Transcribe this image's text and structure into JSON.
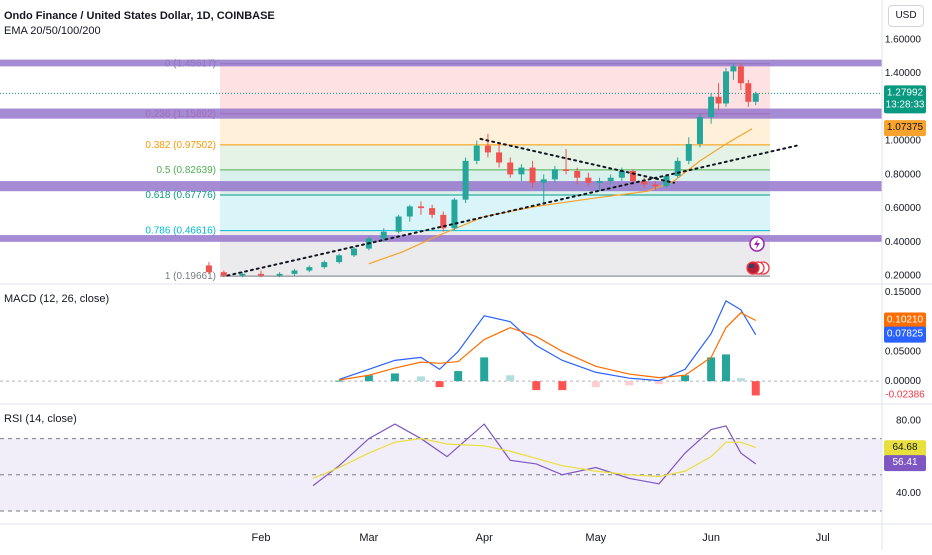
{
  "header": {
    "title": "Ondo Finance / United States Dollar, 1D, COINBASE",
    "indicator": "EMA 20/50/100/200",
    "currency_button": "USD"
  },
  "colors": {
    "up": "#26a69a",
    "down": "#ef5350",
    "ema": "#f7a32c",
    "macd": "#2962ff",
    "signal": "#ff6d00",
    "rsi": "#7e57c2",
    "rsi_ma": "#e8df3c",
    "zone": "#9575cd"
  },
  "chart_data": [
    {
      "type": "candlestick",
      "title": "Ondo Finance / United States Dollar, 1D, COINBASE",
      "xlabel": "",
      "ylabel": "",
      "ylim": [
        0.15,
        1.62
      ],
      "yticks": [
        "1.60000",
        "1.40000",
        "1.20000",
        "1.00000",
        "0.80000",
        "0.60000",
        "0.40000",
        "0.20000"
      ],
      "x_ticks": [
        "Feb",
        "Mar",
        "Apr",
        "May",
        "Jun",
        "Jul"
      ],
      "price_labels": {
        "last": "1.27992",
        "countdown": "13:28:33",
        "ema": "1.07375"
      },
      "fib_levels": [
        {
          "label": "0 (1.45617)",
          "value": 1.45617,
          "color": "#787b86"
        },
        {
          "label": "0.236 (1.15892)",
          "value": 1.15892,
          "color": "#f23645"
        },
        {
          "label": "0.382 (0.97502)",
          "value": 0.97502,
          "color": "#ff9800"
        },
        {
          "label": "0.5 (0.82639)",
          "value": 0.82639,
          "color": "#4caf50"
        },
        {
          "label": "0.618 (0.67776)",
          "value": 0.67776,
          "color": "#089981"
        },
        {
          "label": "0.786 (0.46616)",
          "value": 0.46616,
          "color": "#00bcd4"
        },
        {
          "label": "1 (0.19661)",
          "value": 0.19661,
          "color": "#787b86"
        }
      ],
      "zones": [
        {
          "low": 1.44,
          "high": 1.48
        },
        {
          "low": 1.13,
          "high": 1.19
        },
        {
          "low": 0.7,
          "high": 0.76
        },
        {
          "low": 0.4,
          "high": 0.44
        }
      ],
      "trendlines": [
        {
          "from": [
            "Jan 23",
            0.2
          ],
          "to": [
            "Jun 24",
            0.97
          ]
        },
        {
          "from": [
            "Mar 31",
            1.01
          ],
          "to": [
            "May 22",
            0.75
          ]
        }
      ],
      "ema_series": {
        "name": "",
        "x": [
          "Mar 1",
          "Mar 10",
          "Mar 20",
          "Apr 1",
          "Apr 15",
          "May 1",
          "May 15",
          "May 22",
          "May 29",
          "Jun 5",
          "Jun 12"
        ],
        "values": [
          0.27,
          0.34,
          0.44,
          0.55,
          0.61,
          0.66,
          0.7,
          0.76,
          0.88,
          0.98,
          1.07
        ]
      },
      "candles": [
        {
          "x": "Jan 18",
          "o": 0.26,
          "h": 0.28,
          "l": 0.21,
          "c": 0.22
        },
        {
          "x": "Jan 22",
          "o": 0.22,
          "h": 0.23,
          "l": 0.19,
          "c": 0.2
        },
        {
          "x": "Jan 27",
          "o": 0.2,
          "h": 0.22,
          "l": 0.19,
          "c": 0.21
        },
        {
          "x": "Feb 1",
          "o": 0.21,
          "h": 0.23,
          "l": 0.19,
          "c": 0.2
        },
        {
          "x": "Feb 6",
          "o": 0.2,
          "h": 0.22,
          "l": 0.19,
          "c": 0.21
        },
        {
          "x": "Feb 10",
          "o": 0.21,
          "h": 0.24,
          "l": 0.2,
          "c": 0.23
        },
        {
          "x": "Feb 14",
          "o": 0.23,
          "h": 0.26,
          "l": 0.22,
          "c": 0.25
        },
        {
          "x": "Feb 18",
          "o": 0.25,
          "h": 0.29,
          "l": 0.24,
          "c": 0.28
        },
        {
          "x": "Feb 22",
          "o": 0.28,
          "h": 0.33,
          "l": 0.27,
          "c": 0.32
        },
        {
          "x": "Feb 26",
          "o": 0.32,
          "h": 0.37,
          "l": 0.31,
          "c": 0.36
        },
        {
          "x": "Mar 1",
          "o": 0.36,
          "h": 0.43,
          "l": 0.35,
          "c": 0.42
        },
        {
          "x": "Mar 5",
          "o": 0.42,
          "h": 0.48,
          "l": 0.4,
          "c": 0.46
        },
        {
          "x": "Mar 9",
          "o": 0.46,
          "h": 0.56,
          "l": 0.45,
          "c": 0.55
        },
        {
          "x": "Mar 12",
          "o": 0.55,
          "h": 0.62,
          "l": 0.52,
          "c": 0.61
        },
        {
          "x": "Mar 15",
          "o": 0.61,
          "h": 0.64,
          "l": 0.56,
          "c": 0.6
        },
        {
          "x": "Mar 18",
          "o": 0.6,
          "h": 0.62,
          "l": 0.54,
          "c": 0.56
        },
        {
          "x": "Mar 21",
          "o": 0.56,
          "h": 0.58,
          "l": 0.46,
          "c": 0.48
        },
        {
          "x": "Mar 24",
          "o": 0.48,
          "h": 0.66,
          "l": 0.47,
          "c": 0.65
        },
        {
          "x": "Mar 27",
          "o": 0.65,
          "h": 0.9,
          "l": 0.63,
          "c": 0.88
        },
        {
          "x": "Mar 30",
          "o": 0.88,
          "h": 1.0,
          "l": 0.86,
          "c": 0.97
        },
        {
          "x": "Apr 2",
          "o": 0.97,
          "h": 1.04,
          "l": 0.9,
          "c": 0.93
        },
        {
          "x": "Apr 5",
          "o": 0.93,
          "h": 0.98,
          "l": 0.84,
          "c": 0.87
        },
        {
          "x": "Apr 8",
          "o": 0.87,
          "h": 0.9,
          "l": 0.78,
          "c": 0.8
        },
        {
          "x": "Apr 11",
          "o": 0.8,
          "h": 0.86,
          "l": 0.76,
          "c": 0.84
        },
        {
          "x": "Apr 14",
          "o": 0.84,
          "h": 0.88,
          "l": 0.72,
          "c": 0.75
        },
        {
          "x": "Apr 17",
          "o": 0.75,
          "h": 0.8,
          "l": 0.62,
          "c": 0.77
        },
        {
          "x": "Apr 20",
          "o": 0.77,
          "h": 0.85,
          "l": 0.75,
          "c": 0.83
        },
        {
          "x": "Apr 23",
          "o": 0.83,
          "h": 0.95,
          "l": 0.8,
          "c": 0.82
        },
        {
          "x": "Apr 26",
          "o": 0.82,
          "h": 0.84,
          "l": 0.74,
          "c": 0.78
        },
        {
          "x": "Apr 29",
          "o": 0.78,
          "h": 0.81,
          "l": 0.73,
          "c": 0.75
        },
        {
          "x": "May 2",
          "o": 0.75,
          "h": 0.78,
          "l": 0.7,
          "c": 0.76
        },
        {
          "x": "May 5",
          "o": 0.76,
          "h": 0.8,
          "l": 0.74,
          "c": 0.78
        },
        {
          "x": "May 8",
          "o": 0.78,
          "h": 0.84,
          "l": 0.76,
          "c": 0.82
        },
        {
          "x": "May 11",
          "o": 0.82,
          "h": 0.83,
          "l": 0.74,
          "c": 0.76
        },
        {
          "x": "May 14",
          "o": 0.76,
          "h": 0.78,
          "l": 0.72,
          "c": 0.74
        },
        {
          "x": "May 17",
          "o": 0.74,
          "h": 0.76,
          "l": 0.71,
          "c": 0.73
        },
        {
          "x": "May 20",
          "o": 0.73,
          "h": 0.8,
          "l": 0.72,
          "c": 0.79
        },
        {
          "x": "May 23",
          "o": 0.79,
          "h": 0.9,
          "l": 0.78,
          "c": 0.88
        },
        {
          "x": "May 26",
          "o": 0.88,
          "h": 1.02,
          "l": 0.86,
          "c": 0.98
        },
        {
          "x": "May 29",
          "o": 0.98,
          "h": 1.16,
          "l": 0.96,
          "c": 1.14
        },
        {
          "x": "Jun 1",
          "o": 1.14,
          "h": 1.28,
          "l": 1.1,
          "c": 1.26
        },
        {
          "x": "Jun 3",
          "o": 1.26,
          "h": 1.34,
          "l": 1.18,
          "c": 1.22
        },
        {
          "x": "Jun 5",
          "o": 1.22,
          "h": 1.43,
          "l": 1.2,
          "c": 1.41
        },
        {
          "x": "Jun 7",
          "o": 1.41,
          "h": 1.46,
          "l": 1.36,
          "c": 1.44
        },
        {
          "x": "Jun 9",
          "o": 1.44,
          "h": 1.46,
          "l": 1.3,
          "c": 1.34
        },
        {
          "x": "Jun 11",
          "o": 1.34,
          "h": 1.36,
          "l": 1.2,
          "c": 1.23
        },
        {
          "x": "Jun 13",
          "o": 1.23,
          "h": 1.29,
          "l": 1.21,
          "c": 1.28
        }
      ]
    },
    {
      "type": "line",
      "title": "MACD (12, 26, close)",
      "ylim": [
        -0.035,
        0.16
      ],
      "yticks": [
        "0.15000",
        "0.10000",
        "0.05000",
        "0.00000"
      ],
      "last_labels": {
        "signal": "0.10210",
        "macd": "0.07825",
        "hist": "-0.02386"
      },
      "x": [
        "Feb 22",
        "Mar 1",
        "Mar 8",
        "Mar 15",
        "Mar 20",
        "Mar 25",
        "Apr 1",
        "Apr 8",
        "Apr 15",
        "Apr 22",
        "May 1",
        "May 10",
        "May 18",
        "May 25",
        "Jun 1",
        "Jun 5",
        "Jun 9",
        "Jun 13"
      ],
      "series": [
        {
          "name": "",
          "role": "macd",
          "values": [
            0.003,
            0.02,
            0.035,
            0.04,
            0.02,
            0.05,
            0.11,
            0.1,
            0.06,
            0.035,
            0.015,
            0.005,
            0.001,
            0.02,
            0.08,
            0.135,
            0.12,
            0.078
          ]
        },
        {
          "name": "",
          "role": "signal",
          "values": [
            0.002,
            0.01,
            0.022,
            0.032,
            0.03,
            0.033,
            0.07,
            0.09,
            0.075,
            0.05,
            0.025,
            0.012,
            0.006,
            0.01,
            0.04,
            0.09,
            0.115,
            0.102
          ]
        },
        {
          "name": "",
          "role": "histogram",
          "values": [
            0.001,
            0.01,
            0.013,
            0.008,
            -0.01,
            0.017,
            0.04,
            0.01,
            -0.015,
            -0.015,
            -0.01,
            -0.007,
            -0.005,
            0.01,
            0.04,
            0.045,
            0.005,
            -0.024
          ]
        }
      ]
    },
    {
      "type": "line",
      "title": "RSI (14, close)",
      "ylim": [
        25,
        88
      ],
      "yticks": [
        "80.00",
        "40.00"
      ],
      "last_labels": {
        "ma": "64.68",
        "rsi": "56.41"
      },
      "x": [
        "Feb 15",
        "Feb 22",
        "Mar 1",
        "Mar 8",
        "Mar 15",
        "Mar 22",
        "Apr 1",
        "Apr 8",
        "Apr 15",
        "Apr 22",
        "May 1",
        "May 10",
        "May 18",
        "May 25",
        "Jun 1",
        "Jun 5",
        "Jun 9",
        "Jun 13"
      ],
      "series": [
        {
          "name": "",
          "role": "rsi",
          "values": [
            44,
            55,
            70,
            78,
            70,
            60,
            78,
            58,
            56,
            50,
            54,
            48,
            45,
            62,
            75,
            77,
            62,
            56
          ]
        },
        {
          "name": "",
          "role": "rsi_ma",
          "values": [
            48,
            54,
            62,
            68,
            70,
            67,
            66,
            63,
            59,
            55,
            52,
            50,
            49,
            52,
            60,
            68,
            68,
            65
          ]
        }
      ],
      "bands": [
        70,
        30
      ]
    }
  ]
}
